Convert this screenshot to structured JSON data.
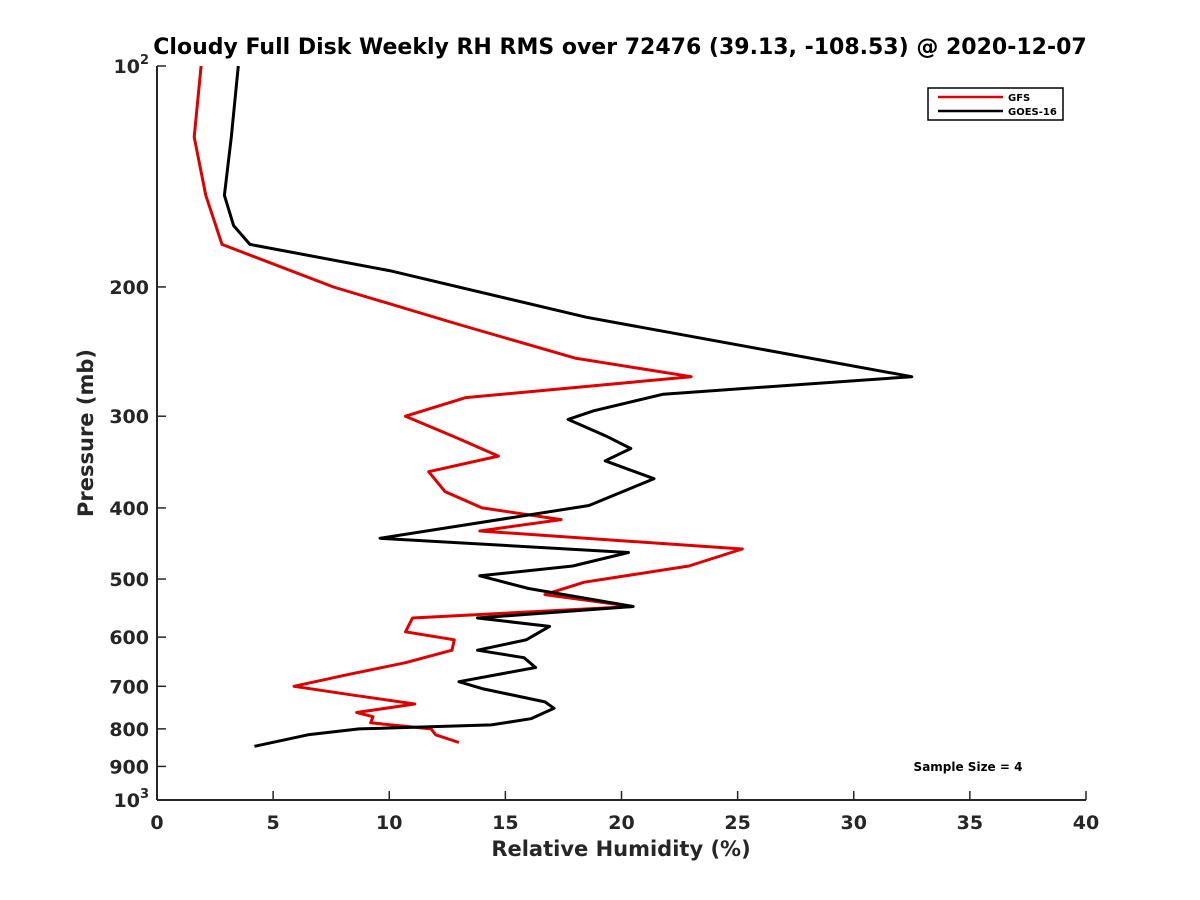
{
  "chart_data": {
    "type": "line",
    "title": "Cloudy Full Disk Weekly RH RMS over 72476 (39.13, -108.53) @ 2020-12-07",
    "xlabel": "Relative Humidity (%)",
    "ylabel": "Pressure (mb)",
    "xlim": [
      0,
      40
    ],
    "ylim": [
      100,
      1000
    ],
    "yscale": "log",
    "y_reversed": true,
    "x_ticks": [
      0,
      5,
      10,
      15,
      20,
      25,
      30,
      35,
      40
    ],
    "y_ticks": [
      {
        "value": 100,
        "label": "10",
        "exp": "2"
      },
      {
        "value": 200,
        "label": "200"
      },
      {
        "value": 300,
        "label": "300"
      },
      {
        "value": 400,
        "label": "400"
      },
      {
        "value": 500,
        "label": "500"
      },
      {
        "value": 600,
        "label": "600"
      },
      {
        "value": 700,
        "label": "700"
      },
      {
        "value": 800,
        "label": "800"
      },
      {
        "value": 900,
        "label": "900"
      },
      {
        "value": 1000,
        "label": "10",
        "exp": "3"
      }
    ],
    "grid": false,
    "legend_position": "top-right",
    "series": [
      {
        "name": "GFS",
        "color": "#dd0000",
        "points": [
          [
            1.9,
            100
          ],
          [
            1.6,
            125
          ],
          [
            2.1,
            150
          ],
          [
            2.8,
            175
          ],
          [
            7.6,
            200
          ],
          [
            13.0,
            225
          ],
          [
            18.0,
            250
          ],
          [
            23.0,
            265
          ],
          [
            13.3,
            283
          ],
          [
            10.7,
            300
          ],
          [
            13.0,
            322
          ],
          [
            14.7,
            340
          ],
          [
            11.7,
            357
          ],
          [
            12.4,
            380
          ],
          [
            14.0,
            400
          ],
          [
            17.4,
            415
          ],
          [
            13.9,
            430
          ],
          [
            25.2,
            455
          ],
          [
            22.9,
            480
          ],
          [
            18.4,
            505
          ],
          [
            16.7,
            525
          ],
          [
            20.5,
            545
          ],
          [
            11.0,
            565
          ],
          [
            10.7,
            590
          ],
          [
            12.8,
            605
          ],
          [
            12.7,
            625
          ],
          [
            10.7,
            650
          ],
          [
            8.2,
            675
          ],
          [
            5.9,
            700
          ],
          [
            8.5,
            720
          ],
          [
            11.1,
            740
          ],
          [
            8.6,
            760
          ],
          [
            9.3,
            770
          ],
          [
            9.2,
            785
          ],
          [
            11.8,
            800
          ],
          [
            12.0,
            815
          ],
          [
            13.0,
            835
          ]
        ]
      },
      {
        "name": "GOES-16",
        "color": "#000000",
        "points": [
          [
            3.5,
            100
          ],
          [
            3.2,
            125
          ],
          [
            2.9,
            150
          ],
          [
            3.3,
            165
          ],
          [
            4.0,
            175
          ],
          [
            10.0,
            190
          ],
          [
            18.5,
            220
          ],
          [
            32.5,
            265
          ],
          [
            21.8,
            280
          ],
          [
            18.8,
            295
          ],
          [
            17.7,
            303
          ],
          [
            19.4,
            320
          ],
          [
            20.4,
            332
          ],
          [
            19.3,
            345
          ],
          [
            21.4,
            365
          ],
          [
            18.6,
            397
          ],
          [
            9.6,
            440
          ],
          [
            20.3,
            460
          ],
          [
            17.9,
            480
          ],
          [
            13.9,
            495
          ],
          [
            16.0,
            515
          ],
          [
            20.5,
            545
          ],
          [
            13.8,
            565
          ],
          [
            16.9,
            580
          ],
          [
            15.9,
            605
          ],
          [
            13.8,
            625
          ],
          [
            15.8,
            640
          ],
          [
            16.3,
            660
          ],
          [
            13.0,
            690
          ],
          [
            14.0,
            705
          ],
          [
            16.7,
            735
          ],
          [
            17.1,
            750
          ],
          [
            16.1,
            775
          ],
          [
            14.4,
            790
          ],
          [
            8.7,
            800
          ],
          [
            6.5,
            815
          ],
          [
            4.2,
            845
          ]
        ]
      }
    ],
    "annotation": "Sample Size = 4"
  }
}
